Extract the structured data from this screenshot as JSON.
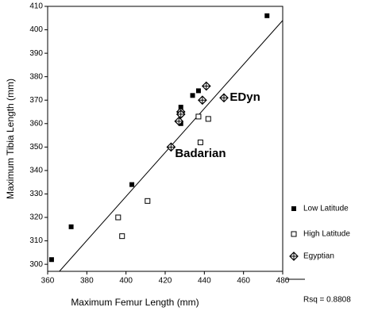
{
  "chart_data": {
    "type": "scatter",
    "x_label": "Maximum Femur Length (mm)",
    "y_label": "Maximum Tibia Length (mm)",
    "xlim": [
      360,
      480
    ],
    "ylim": [
      297,
      410
    ],
    "xticks": [
      360,
      380,
      400,
      420,
      440,
      460,
      480
    ],
    "yticks": [
      300,
      310,
      320,
      330,
      340,
      350,
      360,
      370,
      380,
      390,
      400,
      410
    ],
    "series": [
      {
        "name": "Low Latitude",
        "marker": "square-filled",
        "color": "#000000",
        "x": [
          362,
          372,
          403,
          428,
          428,
          428,
          434,
          437,
          472
        ],
        "values": [
          302,
          316,
          334,
          367,
          365,
          360,
          372,
          374,
          406
        ]
      },
      {
        "name": "High Latitude",
        "marker": "square-open",
        "color": "#000000",
        "x": [
          396,
          398,
          411,
          437,
          442,
          438
        ],
        "values": [
          320,
          312,
          327,
          363,
          362,
          352
        ]
      },
      {
        "name": "Egyptian",
        "marker": "diamond-cross",
        "color": "#000000",
        "x": [
          423,
          427,
          428,
          428,
          439,
          441,
          450
        ],
        "values": [
          350,
          361,
          365,
          364,
          370,
          376,
          371
        ]
      }
    ],
    "fit": {
      "x": [
        366,
        480
      ],
      "values": [
        297,
        404
      ],
      "color": "#000000"
    },
    "fit_label": "Rsq = 0.8808",
    "annotations": [
      "EDyn",
      "Badarian"
    ]
  }
}
